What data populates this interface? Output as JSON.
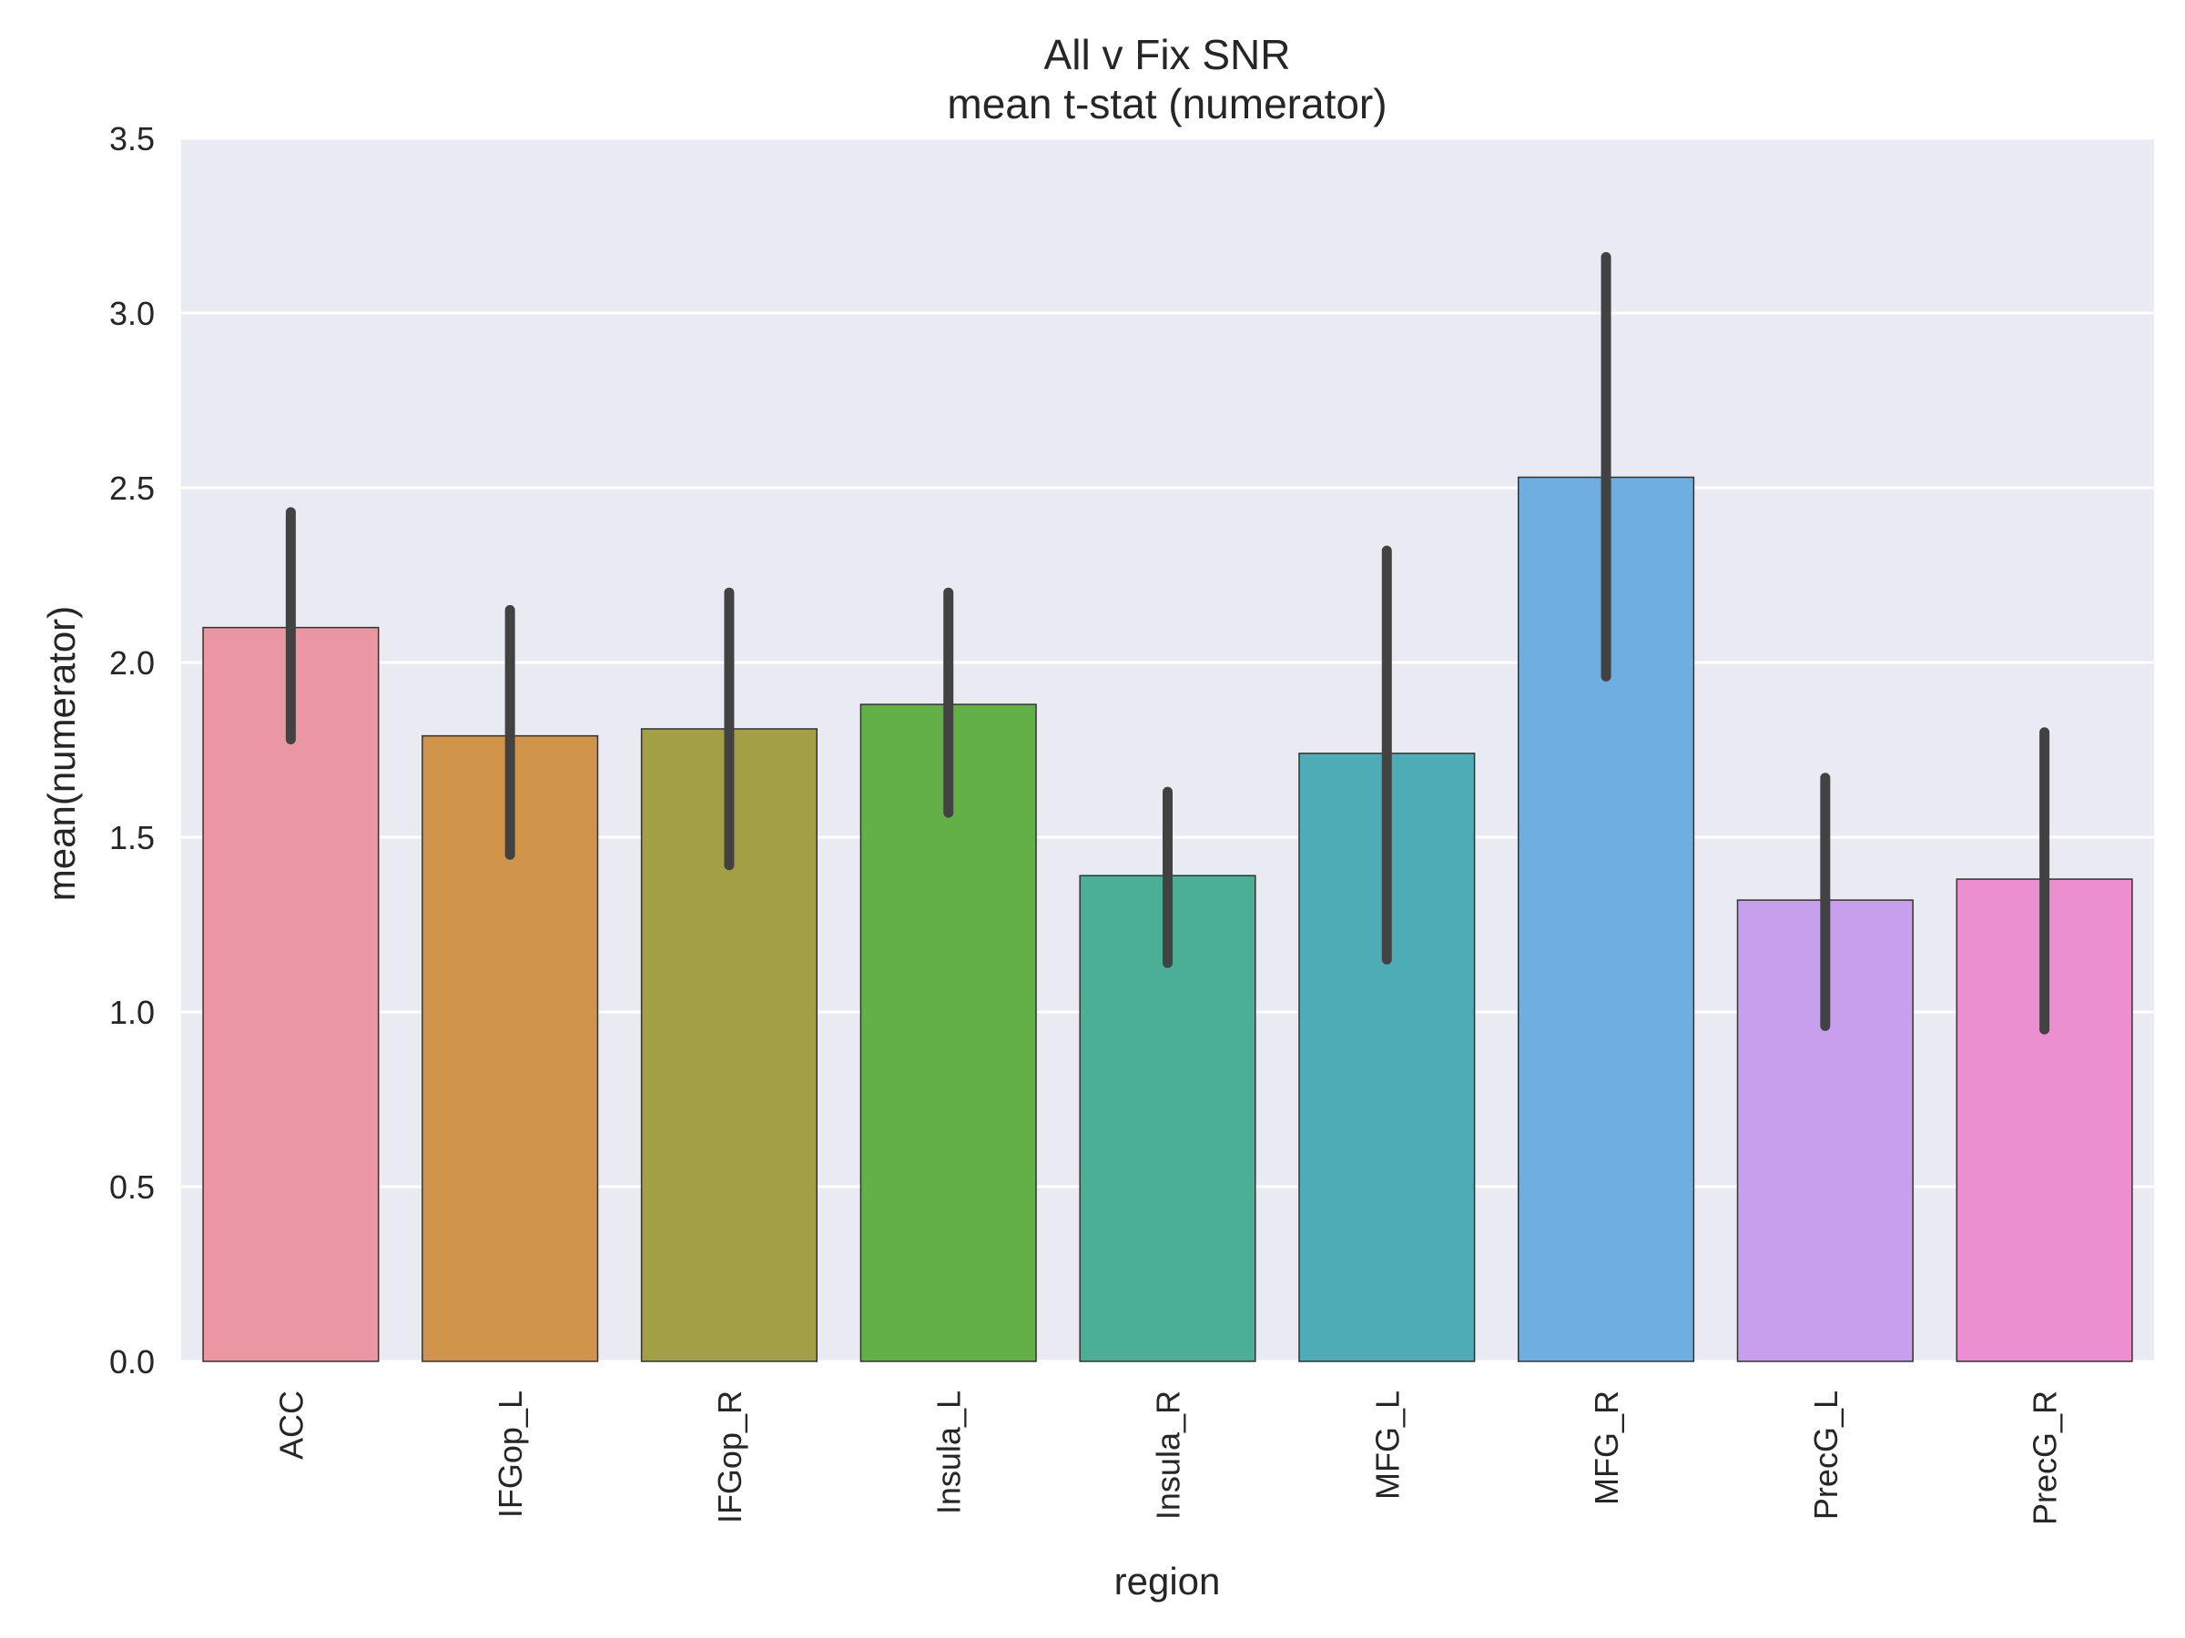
{
  "chart_data": {
    "type": "bar",
    "title": "All v Fix SNR",
    "subtitle": "mean t-stat (numerator)",
    "xlabel": "region",
    "ylabel": "mean(numerator)",
    "ylim": [
      0,
      3.5
    ],
    "yticks": [
      0.0,
      0.5,
      1.0,
      1.5,
      2.0,
      2.5,
      3.0,
      3.5
    ],
    "ytick_labels": [
      "0.0",
      "0.5",
      "1.0",
      "1.5",
      "2.0",
      "2.5",
      "3.0",
      "3.5"
    ],
    "grid": true,
    "categories": [
      "ACC",
      "IFGop_L",
      "IFGop_R",
      "Insula_L",
      "Insula_R",
      "MFG_L",
      "MFG_R",
      "PrecG_L",
      "PrecG_R"
    ],
    "values": [
      2.1,
      1.79,
      1.81,
      1.88,
      1.39,
      1.74,
      2.53,
      1.32,
      1.38
    ],
    "error_low": [
      1.78,
      1.45,
      1.42,
      1.57,
      1.14,
      1.15,
      1.96,
      0.96,
      0.95
    ],
    "error_high": [
      2.43,
      2.15,
      2.2,
      2.2,
      1.63,
      2.32,
      3.16,
      1.67,
      1.8
    ],
    "colors": [
      "#ea96a3",
      "#d0954b",
      "#a29f46",
      "#63b048",
      "#4aaf95",
      "#4eacb7",
      "#6eaee0",
      "#c6a0ed",
      "#ec8fd1"
    ],
    "plot_background": "#eaeaf2",
    "grid_color": "#ffffff",
    "error_bar_color": "#424242"
  }
}
